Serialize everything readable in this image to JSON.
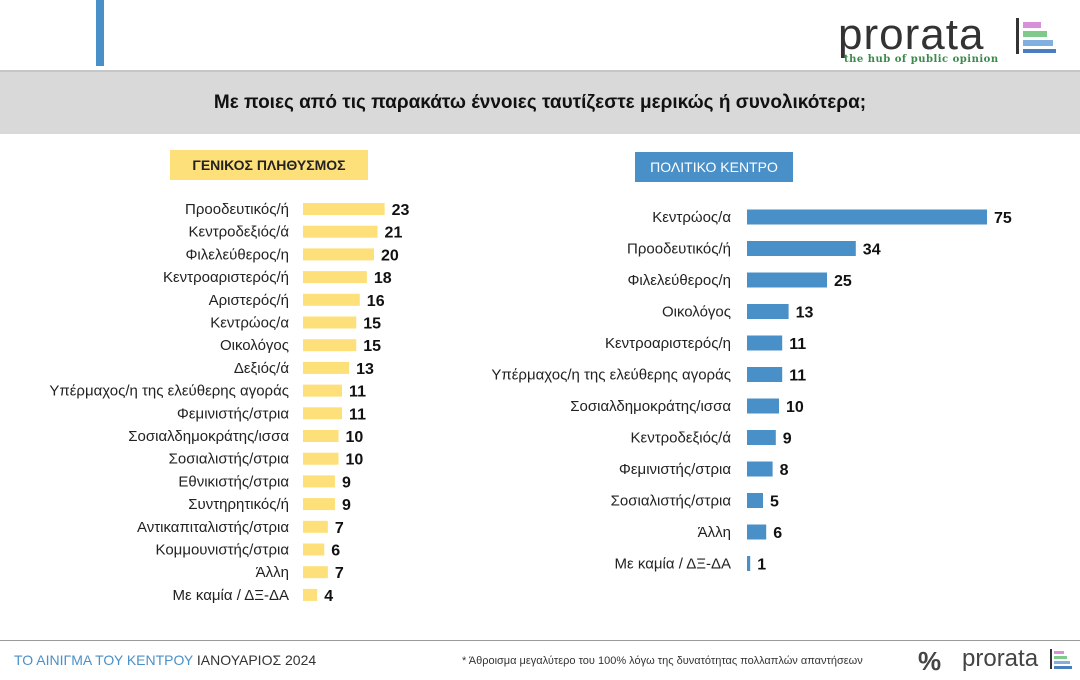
{
  "brand": {
    "name": "prorata",
    "tagline": "the hub of public opinion"
  },
  "title": "Με ποιες από τις παρακάτω έννοιες ταυτίζεστε μερικώς ή συνολικότερα;",
  "footer": {
    "series_title": "ΤΟ ΑΙΝΙΓΜΑ ΤΟΥ ΚΕΝΤΡΟΥ",
    "date": "ΙΑΝΟΥΑΡΙΟΣ 2024",
    "note": "* Άθροισμα μεγαλύτερο του 100% λόγω της δυνατότητας πολλαπλών απαντήσεων",
    "percent_symbol": "%"
  },
  "colors": {
    "yellow": "#fde07a",
    "blue": "#4a90c8",
    "grey": "#d9d9d9"
  },
  "chart_data": [
    {
      "type": "bar",
      "orientation": "horizontal",
      "title": "ΓΕΝΙΚΟΣ ΠΛΗΘΥΣΜΟΣ",
      "color": "#fde07a",
      "categories": [
        "Προοδευτικός/ή",
        "Κεντροδεξιός/ά",
        "Φιλελεύθερος/η",
        "Κεντροαριστερός/ή",
        "Αριστερός/ή",
        "Κεντρώος/α",
        "Οικολόγος",
        "Δεξιός/ά",
        "Υπέρμαχος/η της ελεύθερης αγοράς",
        "Φεμινιστής/στρια",
        "Σοσιαλδημοκράτης/ισσα",
        "Σοσιαλιστής/στρια",
        "Εθνικιστής/στρια",
        "Συντηρητικός/ή",
        "Αντικαπιταλιστής/στρια",
        "Κομμουνιστής/στρια",
        "Άλλη",
        "Με καμία / ΔΞ-ΔΑ"
      ],
      "values": [
        23,
        21,
        20,
        18,
        16,
        15,
        15,
        13,
        11,
        11,
        10,
        10,
        9,
        9,
        7,
        6,
        7,
        4
      ],
      "xlim": [
        0,
        75
      ],
      "grid": false
    },
    {
      "type": "bar",
      "orientation": "horizontal",
      "title": "ΠΟΛΙΤΙΚΟ ΚΕΝΤΡΟ",
      "color": "#4a90c8",
      "categories": [
        "Κεντρώος/α",
        "Προοδευτικός/ή",
        "Φιλελεύθερος/η",
        "Οικολόγος",
        "Κεντροαριστερός/η",
        "Υπέρμαχος/η της ελεύθερης αγοράς",
        "Σοσιαλδημοκράτης/ισσα",
        "Κεντροδεξιός/ά",
        "Φεμινιστής/στρια",
        "Σοσιαλιστής/στρια",
        "Άλλη",
        "Με καμία / ΔΞ-ΔΑ"
      ],
      "values": [
        75,
        34,
        25,
        13,
        11,
        11,
        10,
        9,
        8,
        5,
        6,
        1
      ],
      "xlim": [
        0,
        75
      ],
      "grid": false
    }
  ]
}
